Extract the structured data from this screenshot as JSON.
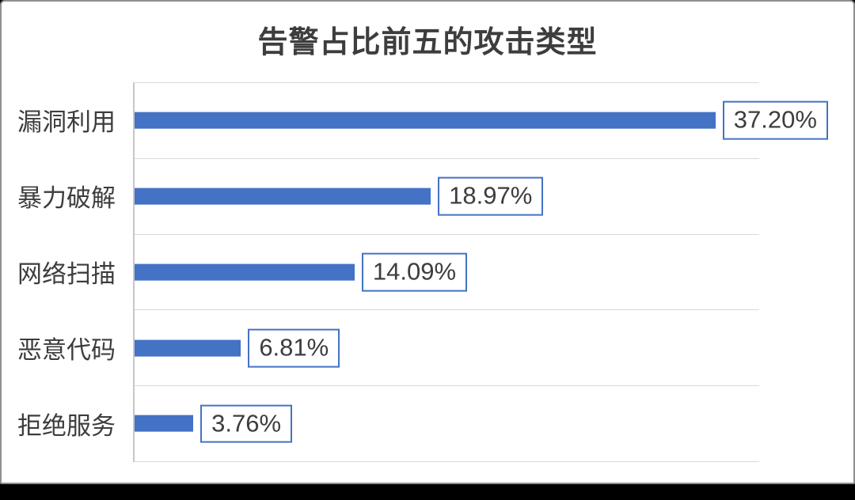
{
  "chart_data": {
    "type": "bar",
    "orientation": "horizontal",
    "title": "告警占比前五的攻击类型",
    "categories": [
      "漏洞利用",
      "暴力破解",
      "网络扫描",
      "恶意代码",
      "拒绝服务"
    ],
    "values": [
      37.2,
      18.97,
      14.09,
      6.81,
      3.76
    ],
    "data_labels": [
      "37.20%",
      "18.97%",
      "14.09%",
      "6.81%",
      "3.76%"
    ],
    "xlabel": "",
    "ylabel": "",
    "xlim": [
      0,
      40
    ],
    "legend": "none",
    "grid": "category-separator horizontal lines",
    "colors": {
      "bar": "#4472C4",
      "label_box_border": "#4472C4",
      "label_box_fill": "#ffffff",
      "gridline": "#d9d9d9",
      "axis_line": "#c6c6c6",
      "text": "#3d3d3d",
      "card_border": "#8f8f8f",
      "bottom_band": "#000000"
    }
  }
}
